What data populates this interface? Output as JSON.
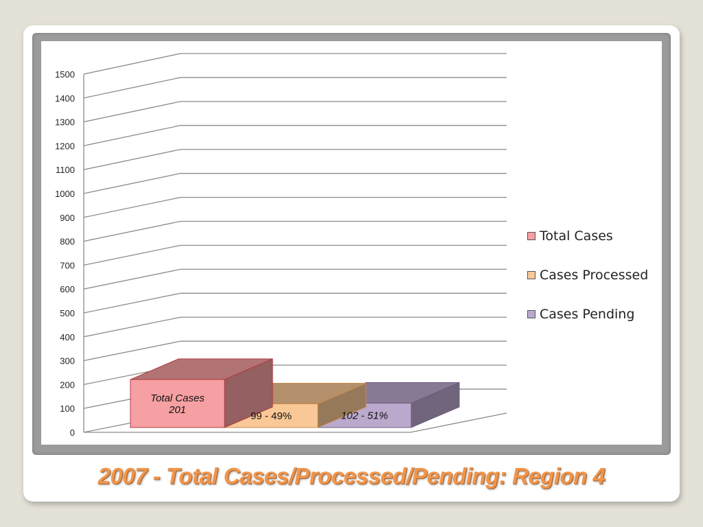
{
  "slide": {
    "title": "2007 - Total Cases/Processed/Pending: Region 4"
  },
  "chart_data": {
    "type": "bar",
    "style": "3d-floating-bars",
    "title": "",
    "xlabel": "",
    "ylabel": "",
    "ylim": [
      0,
      1500
    ],
    "yticks": [
      0,
      100,
      200,
      300,
      400,
      500,
      600,
      700,
      800,
      900,
      1000,
      1100,
      1200,
      1300,
      1400,
      1500
    ],
    "grid": true,
    "legend_position": "right",
    "series": [
      {
        "name": "Total Cases",
        "values": [
          201
        ],
        "color": "#f7a0a3",
        "label": "Total Cases\n201",
        "label_italic": true
      },
      {
        "name": "Cases Processed",
        "values": [
          99
        ],
        "color": "#fac896",
        "label": "99 - 49%",
        "label_italic": false
      },
      {
        "name": "Cases Pending",
        "values": [
          102
        ],
        "color": "#bba9cd",
        "label": "102 - 51%",
        "label_italic": true
      }
    ]
  },
  "legend": {
    "items": [
      {
        "label": "Total Cases",
        "color": "#f7a0a3"
      },
      {
        "label": "Cases Processed",
        "color": "#fac896"
      },
      {
        "label": "Cases Pending",
        "color": "#bba9cd"
      }
    ]
  }
}
